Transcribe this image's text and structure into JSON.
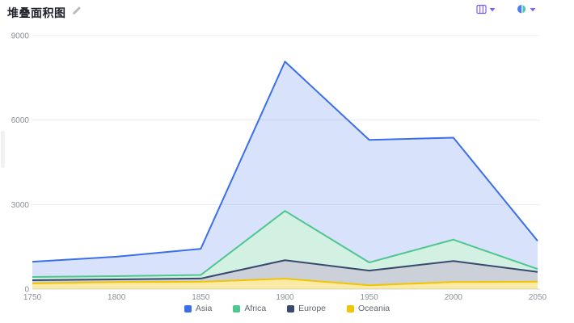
{
  "header": {
    "title": "堆叠面积图"
  },
  "toolbar": {
    "view_switch_color": "#7C5CFC",
    "chart_type_colors": {
      "left": "#4D7DF2",
      "right": "#49C7B8"
    },
    "caret_color": "#7C5CFC"
  },
  "scrollbar": {
    "visible": true
  },
  "chart_data": {
    "type": "area",
    "stacked": true,
    "title": "堆叠面积图",
    "categories": [
      "1750",
      "1800",
      "1850",
      "1900",
      "1950",
      "2000",
      "2050"
    ],
    "series": [
      {
        "name": "Asia",
        "color": "#3B6FE8",
        "fill_opacity": 0.2,
        "values": [
          540,
          690,
          930,
          5300,
          4350,
          3620,
          1000
        ]
      },
      {
        "name": "Africa",
        "color": "#4EC690",
        "fill_opacity": 0.25,
        "values": [
          115,
          115,
          125,
          1750,
          290,
          760,
          100
        ]
      },
      {
        "name": "Europe",
        "color": "#37496D",
        "fill_opacity": 0.26,
        "values": [
          115,
          95,
          115,
          655,
          520,
          745,
          350
        ]
      },
      {
        "name": "Oceania",
        "color": "#F2C402",
        "fill_opacity": 0.35,
        "values": [
          200,
          250,
          260,
          370,
          135,
          250,
          260
        ]
      }
    ],
    "stack_order": "last-series-at-bottom",
    "y_axis": {
      "ticks": [
        0,
        3000,
        6000,
        9000
      ],
      "max": 9000,
      "label_color": "#8a9099"
    },
    "x_axis": {
      "label_color": "#8a9099"
    },
    "grid": {
      "show": true,
      "line_color": "#ececec",
      "axis_line_color": "#d8d8d8"
    },
    "legend": {
      "position": "bottom",
      "items": [
        "Asia",
        "Africa",
        "Europe",
        "Oceania"
      ]
    }
  }
}
